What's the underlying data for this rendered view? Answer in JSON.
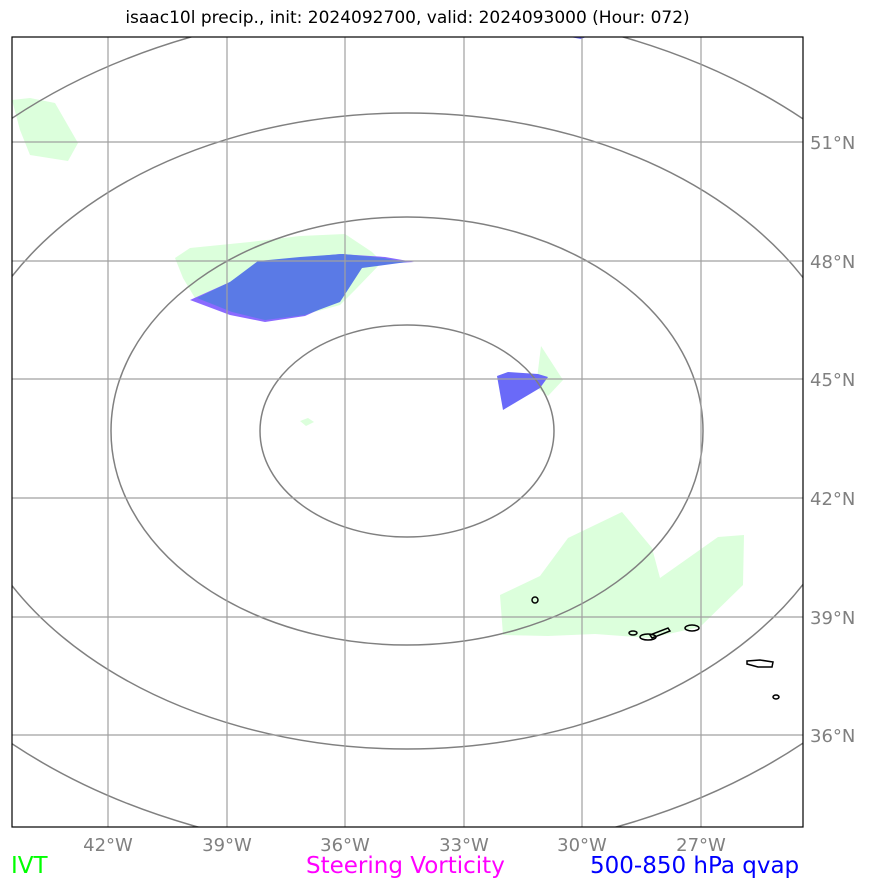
{
  "title": "isaac10l precip., init: 2024092700, valid: 2024093000 (Hour: 072)",
  "map": {
    "lat_labels": [
      "51°N",
      "48°N",
      "45°N",
      "42°N",
      "39°N",
      "36°N"
    ],
    "lon_labels": [
      "42°W",
      "39°W",
      "36°W",
      "33°W",
      "30°W",
      "27°W"
    ],
    "gridline_color": "#a0a0a0",
    "contour_color": "#808080",
    "coastline_color": "#000000"
  },
  "legend": {
    "ivt": {
      "label": "IVT",
      "color": "#00ff00"
    },
    "vorticity": {
      "label": "Steering Vorticity",
      "color": "#ff00ff"
    },
    "qvap": {
      "label": "500-850 hPa qvap",
      "color": "#0000ff"
    }
  },
  "colors": {
    "ivt_fill": "#dcffdc",
    "qvap_fill": "#5a7ae6",
    "vort_fill": "#8a6aff"
  }
}
